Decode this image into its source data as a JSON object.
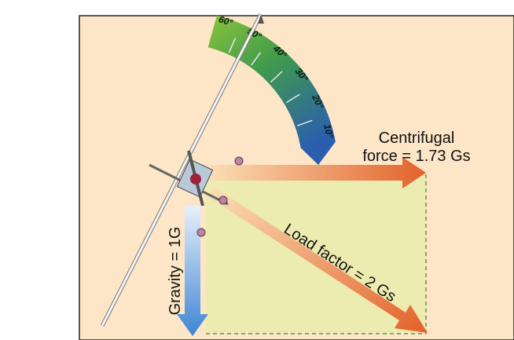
{
  "gauge": {
    "labels": [
      "60°",
      "50°",
      "40°",
      "30°",
      "20°",
      "10°"
    ]
  },
  "centrifugal": {
    "line1": "Centrifugal",
    "line2": "force = 1.73 Gs"
  },
  "load_factor": "Load factor = 2 Gs",
  "gravity": "Gravity = 1G"
}
